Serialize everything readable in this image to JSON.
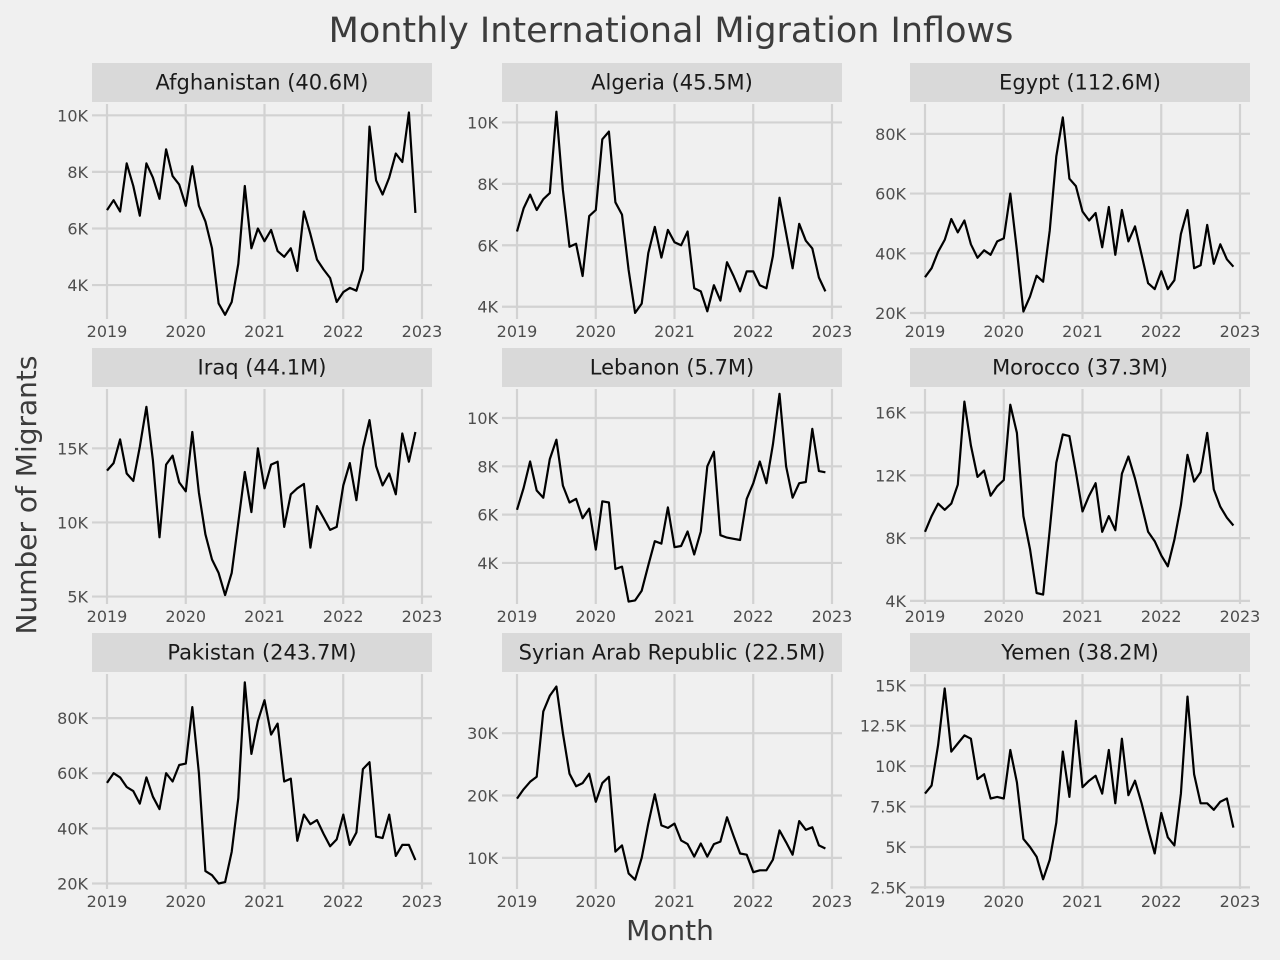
{
  "chart_data": {
    "type": "line",
    "title": "Monthly International Migration Inflows",
    "xlabel": "Month",
    "ylabel": "Number of Migrants",
    "x_ticks": [
      "2019",
      "2020",
      "2021",
      "2022",
      "2023"
    ],
    "x_start": "2019-01",
    "grid": true,
    "line_color": "#000000",
    "background_color": "#f0f0f0",
    "strip_color": "#d9d9d9",
    "panels": [
      {
        "label": "Afghanistan (40.6M)",
        "ylim": [
          2800,
          10400
        ],
        "yticks": [
          4000,
          6000,
          8000,
          10000
        ],
        "ytick_labels": [
          "4K",
          "6K",
          "8K",
          "10K"
        ],
        "values": [
          6650,
          7000,
          6600,
          8300,
          7500,
          6450,
          8300,
          7800,
          7050,
          8800,
          7850,
          7550,
          6800,
          8200,
          6800,
          6250,
          5300,
          3350,
          2950,
          3400,
          4750,
          7500,
          5300,
          6000,
          5550,
          5950,
          5200,
          5000,
          5300,
          4500,
          6600,
          5800,
          4900,
          4550,
          4250,
          3400,
          3750,
          3900,
          3800,
          4550,
          9600,
          7700,
          7200,
          7800,
          8650,
          8350,
          10100,
          6550
        ]
      },
      {
        "label": "Algeria (45.5M)",
        "ylim": [
          3600,
          10600
        ],
        "yticks": [
          4000,
          6000,
          8000,
          10000
        ],
        "ytick_labels": [
          "4K",
          "6K",
          "8K",
          "10K"
        ],
        "values": [
          6450,
          7200,
          7650,
          7150,
          7500,
          7700,
          10350,
          7800,
          5950,
          6050,
          5000,
          6950,
          7150,
          9450,
          9700,
          7400,
          7000,
          5200,
          3800,
          4100,
          5750,
          6600,
          5600,
          6500,
          6100,
          6000,
          6450,
          4600,
          4500,
          3850,
          4700,
          4200,
          5450,
          5000,
          4500,
          5150,
          5150,
          4700,
          4600,
          5650,
          7550,
          6400,
          5250,
          6700,
          6150,
          5900,
          4950,
          4500
        ]
      },
      {
        "label": "Egypt (112.6M)",
        "ylim": [
          18000,
          90000
        ],
        "yticks": [
          20000,
          40000,
          60000,
          80000
        ],
        "ytick_labels": [
          "20K",
          "40K",
          "60K",
          "80K"
        ],
        "values": [
          32000,
          35000,
          40500,
          44500,
          51500,
          47000,
          51000,
          43000,
          38500,
          41000,
          39500,
          44000,
          45000,
          60000,
          41000,
          20500,
          25500,
          32500,
          30500,
          47500,
          72500,
          85500,
          65000,
          62500,
          54000,
          51000,
          53500,
          42000,
          55500,
          39500,
          54500,
          44000,
          49000,
          39500,
          30000,
          28000,
          34000,
          28000,
          31000,
          46500,
          54500,
          35000,
          36000,
          49500,
          36500,
          43000,
          38000,
          35500
        ]
      },
      {
        "label": "Iraq (44.1M)",
        "ylim": [
          4500,
          19000
        ],
        "yticks": [
          5000,
          10000,
          15000
        ],
        "ytick_labels": [
          "5K",
          "10K",
          "15K"
        ],
        "values": [
          13500,
          14000,
          15600,
          13300,
          12800,
          15100,
          17800,
          14200,
          9000,
          13900,
          14500,
          12700,
          12100,
          16100,
          12000,
          9200,
          7500,
          6600,
          5100,
          6600,
          10000,
          13400,
          10700,
          15000,
          12300,
          13900,
          14100,
          9700,
          11900,
          12300,
          12600,
          8300,
          11100,
          10300,
          9500,
          9700,
          12500,
          14000,
          11500,
          15000,
          16900,
          13800,
          12500,
          13300,
          11900,
          16000,
          14100,
          16100
        ]
      },
      {
        "label": "Lebanon (5.7M)",
        "ylim": [
          2300,
          11200
        ],
        "yticks": [
          4000,
          6000,
          8000,
          10000
        ],
        "ytick_labels": [
          "4K",
          "6K",
          "8K",
          "10K"
        ],
        "values": [
          6200,
          7100,
          8200,
          7000,
          6700,
          8300,
          9100,
          7200,
          6500,
          6650,
          5850,
          6250,
          4550,
          6550,
          6500,
          3750,
          3850,
          2400,
          2450,
          2850,
          3900,
          4900,
          4800,
          6300,
          4650,
          4700,
          5300,
          4350,
          5300,
          8000,
          8600,
          5150,
          5050,
          5000,
          4950,
          6650,
          7300,
          8200,
          7300,
          8900,
          11000,
          8000,
          6700,
          7300,
          7350,
          9550,
          7800,
          7750
        ]
      },
      {
        "label": "Morocco (37.3M)",
        "ylim": [
          3800,
          17500
        ],
        "yticks": [
          4000,
          8000,
          12000,
          16000
        ],
        "ytick_labels": [
          "4K",
          "8K",
          "12K",
          "16K"
        ],
        "values": [
          8400,
          9400,
          10200,
          9800,
          10200,
          11400,
          16700,
          13900,
          11900,
          12300,
          10700,
          11300,
          11700,
          16500,
          14700,
          9400,
          7300,
          4500,
          4400,
          8500,
          12800,
          14600,
          14500,
          12200,
          9700,
          10700,
          11500,
          8400,
          9400,
          8500,
          12100,
          13200,
          11800,
          10100,
          8400,
          7800,
          6900,
          6200,
          7900,
          10100,
          13300,
          11600,
          12200,
          14700,
          11100,
          10000,
          9300,
          8800
        ]
      },
      {
        "label": "Pakistan (243.7M)",
        "ylim": [
          18000,
          96000
        ],
        "yticks": [
          20000,
          40000,
          60000,
          80000
        ],
        "ytick_labels": [
          "20K",
          "40K",
          "60K",
          "80K"
        ],
        "values": [
          56500,
          60000,
          58500,
          55000,
          53500,
          49000,
          58500,
          51500,
          47000,
          60000,
          57000,
          63000,
          63500,
          84000,
          60000,
          24500,
          23000,
          20000,
          20500,
          31500,
          51000,
          93000,
          67000,
          79000,
          86500,
          74000,
          78000,
          57000,
          58000,
          35500,
          45000,
          41500,
          43000,
          38000,
          33500,
          36000,
          45000,
          34000,
          38500,
          61500,
          64000,
          37000,
          36500,
          45000,
          30000,
          34000,
          34000,
          28500
        ]
      },
      {
        "label": "Syrian Arab Republic (22.5M)",
        "ylim": [
          5000,
          39500
        ],
        "yticks": [
          10000,
          20000,
          30000
        ],
        "ytick_labels": [
          "10K",
          "20K",
          "30K"
        ],
        "values": [
          19500,
          21000,
          22200,
          23000,
          33500,
          36000,
          37500,
          30000,
          23500,
          21500,
          22000,
          23500,
          19000,
          22000,
          23000,
          11000,
          12000,
          7500,
          6500,
          10000,
          15500,
          20200,
          15200,
          14800,
          15500,
          12800,
          12200,
          10200,
          12300,
          10200,
          12200,
          12600,
          16500,
          13500,
          10700,
          10500,
          7700,
          8000,
          8000,
          9700,
          14400,
          12500,
          10500,
          15900,
          14500,
          14900,
          12000,
          11500
        ]
      },
      {
        "label": "Yemen (38.2M)",
        "ylim": [
          2400,
          15700
        ],
        "yticks": [
          2500,
          5000,
          7500,
          10000,
          12500,
          15000
        ],
        "ytick_labels": [
          "2.5K",
          "5K",
          "7.5K",
          "10K",
          "12.5K",
          "15K"
        ],
        "values": [
          8300,
          8800,
          11300,
          14800,
          10900,
          11400,
          11900,
          11700,
          9200,
          9500,
          8000,
          8100,
          8000,
          11000,
          9000,
          5500,
          5000,
          4400,
          3000,
          4200,
          6500,
          10900,
          8100,
          12800,
          8700,
          9100,
          9400,
          8300,
          11000,
          7700,
          11700,
          8200,
          9100,
          7700,
          6100,
          4600,
          7100,
          5600,
          5100,
          8300,
          14300,
          9500,
          7700,
          7700,
          7300,
          7800,
          8000,
          6200
        ]
      }
    ]
  }
}
